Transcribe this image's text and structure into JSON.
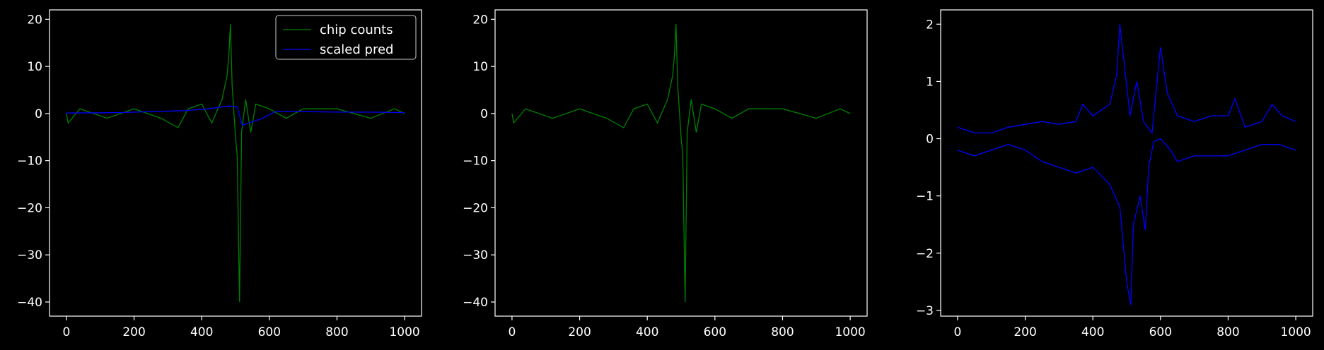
{
  "colors": {
    "background": "#000000",
    "axes": "#ffffff",
    "chip": "#008000",
    "pred": "#0000ff"
  },
  "chart_data": [
    {
      "type": "line",
      "panel": "left",
      "xlim": [
        -50,
        1050
      ],
      "ylim": [
        -43,
        22
      ],
      "xticks": [
        0,
        200,
        400,
        600,
        800,
        1000
      ],
      "yticks": [
        20,
        10,
        0,
        -10,
        -20,
        -30,
        -40
      ],
      "legend": {
        "placement": "upper-right",
        "entries": [
          "chip counts",
          "scaled pred"
        ]
      },
      "series": [
        {
          "name": "chip counts",
          "color": "#008000",
          "points": [
            [
              0,
              0
            ],
            [
              5,
              -2
            ],
            [
              40,
              1
            ],
            [
              120,
              -1
            ],
            [
              200,
              1
            ],
            [
              280,
              -1
            ],
            [
              330,
              -3
            ],
            [
              360,
              1
            ],
            [
              400,
              2
            ],
            [
              430,
              -2
            ],
            [
              460,
              3
            ],
            [
              475,
              8
            ],
            [
              480,
              12
            ],
            [
              485,
              19
            ],
            [
              490,
              6
            ],
            [
              500,
              -5
            ],
            [
              505,
              -9
            ],
            [
              512,
              -40
            ],
            [
              518,
              -4
            ],
            [
              530,
              3
            ],
            [
              545,
              -4
            ],
            [
              560,
              2
            ],
            [
              600,
              1
            ],
            [
              650,
              -1
            ],
            [
              700,
              1
            ],
            [
              800,
              1
            ],
            [
              900,
              -1
            ],
            [
              970,
              1
            ],
            [
              1000,
              0
            ]
          ]
        },
        {
          "name": "scaled pred",
          "color": "#0000ff",
          "points": [
            [
              0,
              0.1
            ],
            [
              150,
              0.2
            ],
            [
              350,
              0.6
            ],
            [
              420,
              1.0
            ],
            [
              480,
              1.6
            ],
            [
              505,
              1.4
            ],
            [
              520,
              -2.5
            ],
            [
              540,
              -2
            ],
            [
              580,
              -1
            ],
            [
              620,
              0.5
            ],
            [
              700,
              0.4
            ],
            [
              800,
              0.3
            ],
            [
              900,
              0.3
            ],
            [
              1000,
              0.2
            ]
          ]
        }
      ]
    },
    {
      "type": "line",
      "panel": "middle",
      "xlim": [
        -50,
        1050
      ],
      "ylim": [
        -43,
        22
      ],
      "xticks": [
        0,
        200,
        400,
        600,
        800,
        1000
      ],
      "yticks": [
        20,
        10,
        0,
        -10,
        -20,
        -30,
        -40
      ],
      "series": [
        {
          "color": "#008000",
          "points": [
            [
              0,
              0
            ],
            [
              5,
              -2
            ],
            [
              40,
              1
            ],
            [
              120,
              -1
            ],
            [
              200,
              1
            ],
            [
              280,
              -1
            ],
            [
              330,
              -3
            ],
            [
              360,
              1
            ],
            [
              400,
              2
            ],
            [
              430,
              -2
            ],
            [
              460,
              3
            ],
            [
              475,
              8
            ],
            [
              480,
              12
            ],
            [
              485,
              19
            ],
            [
              490,
              6
            ],
            [
              500,
              -5
            ],
            [
              505,
              -9
            ],
            [
              512,
              -40
            ],
            [
              518,
              -4
            ],
            [
              530,
              3
            ],
            [
              545,
              -4
            ],
            [
              560,
              2
            ],
            [
              600,
              1
            ],
            [
              650,
              -1
            ],
            [
              700,
              1
            ],
            [
              800,
              1
            ],
            [
              900,
              -1
            ],
            [
              970,
              1
            ],
            [
              1000,
              0
            ]
          ]
        }
      ]
    },
    {
      "type": "line",
      "panel": "right",
      "xlim": [
        -50,
        1050
      ],
      "ylim": [
        -3.1,
        2.25
      ],
      "xticks": [
        0,
        200,
        400,
        600,
        800,
        1000
      ],
      "yticks": [
        2,
        1,
        0,
        -1,
        -2,
        -3
      ],
      "series": [
        {
          "color": "#0000ff",
          "points": [
            [
              0,
              0.2
            ],
            [
              50,
              0.1
            ],
            [
              100,
              0.1
            ],
            [
              150,
              0.2
            ],
            [
              200,
              0.25
            ],
            [
              250,
              0.3
            ],
            [
              300,
              0.25
            ],
            [
              350,
              0.3
            ],
            [
              370,
              0.6
            ],
            [
              400,
              0.4
            ],
            [
              450,
              0.6
            ],
            [
              470,
              1.1
            ],
            [
              480,
              2.0
            ],
            [
              495,
              1.2
            ],
            [
              510,
              0.4
            ],
            [
              530,
              1.0
            ],
            [
              550,
              0.3
            ],
            [
              575,
              0.1
            ],
            [
              600,
              1.6
            ],
            [
              620,
              0.8
            ],
            [
              650,
              0.4
            ],
            [
              700,
              0.3
            ],
            [
              750,
              0.4
            ],
            [
              800,
              0.4
            ],
            [
              820,
              0.7
            ],
            [
              850,
              0.2
            ],
            [
              900,
              0.3
            ],
            [
              930,
              0.6
            ],
            [
              960,
              0.4
            ],
            [
              1000,
              0.3
            ]
          ]
        },
        {
          "color": "#0000ff",
          "points": [
            [
              0,
              -0.2
            ],
            [
              50,
              -0.3
            ],
            [
              100,
              -0.2
            ],
            [
              150,
              -0.1
            ],
            [
              200,
              -0.2
            ],
            [
              250,
              -0.4
            ],
            [
              300,
              -0.5
            ],
            [
              350,
              -0.6
            ],
            [
              400,
              -0.5
            ],
            [
              450,
              -0.8
            ],
            [
              480,
              -1.2
            ],
            [
              500,
              -2.5
            ],
            [
              512,
              -2.9
            ],
            [
              520,
              -1.5
            ],
            [
              540,
              -1.0
            ],
            [
              555,
              -1.6
            ],
            [
              565,
              -0.5
            ],
            [
              580,
              -0.05
            ],
            [
              600,
              0.0
            ],
            [
              630,
              -0.2
            ],
            [
              650,
              -0.4
            ],
            [
              700,
              -0.3
            ],
            [
              750,
              -0.3
            ],
            [
              800,
              -0.3
            ],
            [
              850,
              -0.2
            ],
            [
              900,
              -0.1
            ],
            [
              950,
              -0.1
            ],
            [
              1000,
              -0.2
            ]
          ]
        }
      ]
    }
  ]
}
